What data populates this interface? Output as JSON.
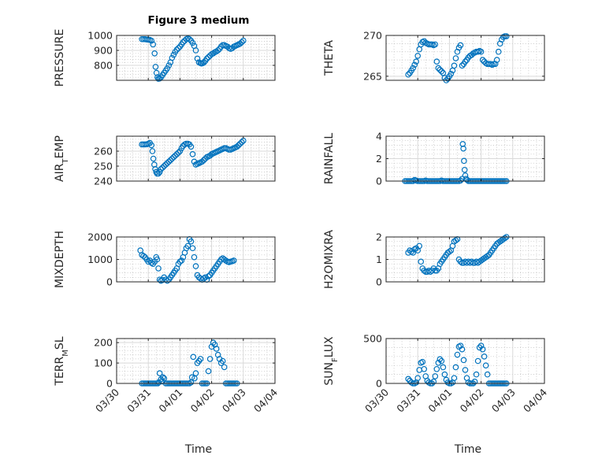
{
  "title": "Figure 3 medium",
  "colors": {
    "marker": "#0072BD",
    "axis": "#262626"
  },
  "x_axis": {
    "label": "Time",
    "range": [
      "03/30",
      "04/04"
    ],
    "ticks": [
      "03/30",
      "03/31",
      "04/01",
      "04/02",
      "04/03",
      "04/04"
    ]
  },
  "chart_data": [
    {
      "type": "scatter",
      "id": "pressure",
      "ylabel": "PRESSURE",
      "ylim": [
        700,
        1000
      ],
      "yticks": [
        800,
        900,
        1000
      ],
      "grid": true,
      "x": [
        0.8,
        0.85,
        0.9,
        0.95,
        1.0,
        1.05,
        1.1,
        1.15,
        1.2,
        1.23,
        1.26,
        1.29,
        1.32,
        1.36,
        1.4,
        1.45,
        1.5,
        1.55,
        1.6,
        1.65,
        1.7,
        1.75,
        1.8,
        1.85,
        1.9,
        1.95,
        2.0,
        2.05,
        2.1,
        2.15,
        2.2,
        2.25,
        2.3,
        2.35,
        2.4,
        2.45,
        2.5,
        2.55,
        2.6,
        2.65,
        2.68,
        2.72,
        2.76,
        2.8,
        2.85,
        2.9,
        2.95,
        3.0,
        3.05,
        3.1,
        3.15,
        3.2,
        3.25,
        3.3,
        3.35,
        3.4,
        3.45,
        3.5,
        3.55,
        3.6,
        3.65,
        3.7,
        3.75,
        3.8,
        3.85,
        3.9,
        3.95,
        4.0
      ],
      "y": [
        975,
        975,
        975,
        973,
        972,
        970,
        965,
        940,
        880,
        790,
        750,
        720,
        710,
        712,
        720,
        735,
        750,
        765,
        780,
        800,
        820,
        850,
        870,
        890,
        905,
        915,
        925,
        940,
        955,
        965,
        975,
        980,
        975,
        965,
        950,
        930,
        900,
        845,
        820,
        815,
        812,
        815,
        820,
        830,
        845,
        855,
        865,
        875,
        880,
        888,
        893,
        900,
        910,
        925,
        935,
        935,
        930,
        925,
        915,
        910,
        915,
        925,
        930,
        935,
        940,
        945,
        955,
        965
      ]
    },
    {
      "type": "scatter",
      "id": "theta",
      "ylabel": "THETA",
      "ylim": [
        264.5,
        270
      ],
      "yticks": [
        265,
        270
      ],
      "grid": true,
      "x": [
        0.7,
        0.75,
        0.8,
        0.85,
        0.9,
        0.95,
        1.0,
        1.05,
        1.1,
        1.15,
        1.2,
        1.25,
        1.3,
        1.35,
        1.4,
        1.45,
        1.5,
        1.55,
        1.6,
        1.65,
        1.7,
        1.75,
        1.8,
        1.85,
        1.9,
        1.95,
        2.0,
        2.05,
        2.1,
        2.15,
        2.2,
        2.25,
        2.3,
        2.35,
        2.4,
        2.45,
        2.5,
        2.55,
        2.6,
        2.65,
        2.7,
        2.75,
        2.8,
        2.85,
        2.9,
        2.95,
        3.0,
        3.05,
        3.1,
        3.15,
        3.2,
        3.25,
        3.3,
        3.35,
        3.4,
        3.45,
        3.5,
        3.55,
        3.6,
        3.65,
        3.7,
        3.75,
        3.8
      ],
      "y": [
        265.2,
        265.4,
        265.7,
        266.0,
        266.4,
        266.8,
        267.5,
        268.3,
        268.9,
        269.2,
        269.3,
        269.1,
        269.0,
        268.9,
        268.9,
        268.9,
        268.8,
        268.9,
        266.8,
        266.0,
        265.8,
        265.6,
        265.4,
        264.8,
        264.5,
        264.7,
        265.0,
        265.3,
        265.7,
        266.3,
        267.2,
        268.0,
        268.5,
        268.8,
        266.3,
        266.5,
        266.8,
        267.0,
        267.3,
        267.5,
        267.6,
        267.8,
        267.9,
        268.0,
        268.0,
        268.1,
        268.0,
        267.0,
        266.8,
        266.6,
        266.5,
        266.5,
        266.5,
        266.4,
        266.5,
        266.5,
        267.0,
        268.0,
        269.0,
        269.5,
        269.8,
        269.9,
        269.9
      ]
    },
    {
      "type": "scatter",
      "id": "air_temp",
      "ylabel": "AIR_TEMP",
      "ylim": [
        240,
        270
      ],
      "yticks": [
        240,
        250,
        260
      ],
      "grid": true,
      "x": [
        0.8,
        0.85,
        0.9,
        0.95,
        1.0,
        1.05,
        1.1,
        1.13,
        1.16,
        1.19,
        1.22,
        1.25,
        1.28,
        1.32,
        1.36,
        1.4,
        1.45,
        1.5,
        1.55,
        1.6,
        1.65,
        1.7,
        1.75,
        1.8,
        1.85,
        1.9,
        1.95,
        2.0,
        2.05,
        2.1,
        2.15,
        2.2,
        2.25,
        2.3,
        2.35,
        2.4,
        2.45,
        2.5,
        2.55,
        2.6,
        2.65,
        2.7,
        2.75,
        2.8,
        2.85,
        2.9,
        2.95,
        3.0,
        3.05,
        3.1,
        3.15,
        3.2,
        3.25,
        3.3,
        3.35,
        3.4,
        3.45,
        3.5,
        3.55,
        3.6,
        3.65,
        3.7,
        3.75,
        3.8,
        3.85,
        3.9,
        3.95,
        4.0
      ],
      "y": [
        264.5,
        264.5,
        264.5,
        264.6,
        265,
        265.5,
        264,
        260,
        255,
        251,
        248,
        246,
        245,
        245,
        246,
        248,
        249,
        250,
        251,
        252,
        253,
        254,
        255,
        256,
        257,
        258,
        259,
        260,
        262,
        263.5,
        264.5,
        265,
        265,
        264.5,
        263,
        258,
        253,
        251,
        251.5,
        252,
        252.5,
        253,
        254,
        255,
        256,
        256.5,
        257,
        258,
        258.5,
        259,
        259.5,
        260,
        260.5,
        261,
        261.5,
        262,
        262,
        261.5,
        261,
        261,
        261.5,
        262,
        262.5,
        263,
        264,
        265,
        266,
        267
      ]
    },
    {
      "type": "scatter",
      "id": "rainfall",
      "ylabel": "RAINFALL",
      "ylim": [
        0,
        4
      ],
      "yticks": [
        0,
        2,
        4
      ],
      "grid": true,
      "x": [
        0.6,
        0.65,
        0.7,
        0.75,
        0.8,
        0.85,
        0.9,
        0.95,
        1.0,
        1.05,
        1.1,
        1.15,
        1.2,
        1.25,
        1.3,
        1.35,
        1.4,
        1.45,
        1.5,
        1.55,
        1.6,
        1.65,
        1.7,
        1.75,
        1.8,
        1.85,
        1.9,
        1.95,
        2.0,
        2.05,
        2.1,
        2.15,
        2.2,
        2.25,
        2.3,
        2.35,
        2.4,
        2.42,
        2.44,
        2.46,
        2.48,
        2.5,
        2.53,
        2.56,
        2.6,
        2.65,
        2.7,
        2.75,
        2.8,
        2.85,
        2.9,
        2.95,
        3.0,
        3.05,
        3.1,
        3.15,
        3.2,
        3.25,
        3.3,
        3.35,
        3.4,
        3.45,
        3.5,
        3.55,
        3.6,
        3.65,
        3.7,
        3.75,
        3.8
      ],
      "y": [
        0,
        0,
        0,
        0,
        0,
        0,
        0.1,
        0.05,
        0,
        0,
        0,
        0,
        0,
        0.05,
        0,
        0,
        0,
        0,
        0,
        0,
        0,
        0,
        0,
        0.05,
        0,
        0,
        0,
        0,
        0,
        0,
        0,
        0,
        0,
        0,
        0,
        0.05,
        0.2,
        3.3,
        2.9,
        1.8,
        1.0,
        0.5,
        0.2,
        0.1,
        0,
        0,
        0,
        0,
        0,
        0,
        0,
        0,
        0,
        0,
        0,
        0,
        0,
        0,
        0,
        0,
        0,
        0,
        0,
        0,
        0,
        0,
        0,
        0,
        0
      ]
    },
    {
      "type": "scatter",
      "id": "mixdepth",
      "ylabel": "MIXDEPTH",
      "ylim": [
        0,
        2000
      ],
      "yticks": [
        0,
        1000,
        2000
      ],
      "grid": true,
      "x": [
        0.75,
        0.8,
        0.85,
        0.9,
        0.95,
        1.0,
        1.05,
        1.1,
        1.15,
        1.2,
        1.25,
        1.28,
        1.32,
        1.36,
        1.4,
        1.45,
        1.5,
        1.55,
        1.6,
        1.65,
        1.7,
        1.75,
        1.8,
        1.85,
        1.9,
        1.95,
        2.0,
        2.05,
        2.1,
        2.15,
        2.2,
        2.25,
        2.3,
        2.35,
        2.4,
        2.45,
        2.5,
        2.55,
        2.6,
        2.65,
        2.7,
        2.75,
        2.8,
        2.85,
        2.9,
        2.95,
        3.0,
        3.05,
        3.1,
        3.15,
        3.2,
        3.25,
        3.3,
        3.35,
        3.4,
        3.45,
        3.5,
        3.55,
        3.6,
        3.65,
        3.7
      ],
      "y": [
        1400,
        1200,
        1150,
        1100,
        1000,
        900,
        950,
        850,
        800,
        900,
        1100,
        1000,
        600,
        100,
        50,
        80,
        200,
        100,
        50,
        100,
        200,
        300,
        400,
        500,
        600,
        800,
        900,
        950,
        1100,
        1300,
        1500,
        1600,
        1900,
        1800,
        1500,
        1100,
        700,
        300,
        200,
        150,
        100,
        150,
        200,
        100,
        250,
        300,
        400,
        500,
        600,
        700,
        800,
        900,
        1000,
        1050,
        1000,
        950,
        900,
        880,
        900,
        920,
        950
      ]
    },
    {
      "type": "scatter",
      "id": "h2omixra",
      "ylabel": "H2OMIXRA",
      "ylim": [
        0,
        2
      ],
      "yticks": [
        0,
        1,
        2
      ],
      "grid": true,
      "x": [
        0.7,
        0.75,
        0.8,
        0.85,
        0.9,
        0.95,
        1.0,
        1.05,
        1.1,
        1.15,
        1.2,
        1.25,
        1.3,
        1.35,
        1.4,
        1.45,
        1.5,
        1.55,
        1.6,
        1.65,
        1.7,
        1.75,
        1.8,
        1.85,
        1.9,
        1.95,
        2.0,
        2.05,
        2.1,
        2.15,
        2.2,
        2.25,
        2.3,
        2.35,
        2.4,
        2.45,
        2.5,
        2.55,
        2.6,
        2.65,
        2.7,
        2.75,
        2.8,
        2.85,
        2.9,
        2.95,
        3.0,
        3.05,
        3.1,
        3.15,
        3.2,
        3.25,
        3.3,
        3.35,
        3.4,
        3.45,
        3.5,
        3.55,
        3.6,
        3.65,
        3.7,
        3.75,
        3.8
      ],
      "y": [
        1.3,
        1.4,
        1.35,
        1.3,
        1.45,
        1.5,
        1.4,
        1.6,
        0.9,
        0.6,
        0.5,
        0.45,
        0.45,
        0.5,
        0.45,
        0.5,
        0.6,
        0.5,
        0.5,
        0.6,
        0.8,
        0.9,
        1.0,
        1.1,
        1.2,
        1.3,
        1.35,
        1.4,
        1.6,
        1.8,
        1.85,
        1.9,
        1.0,
        0.9,
        0.85,
        0.85,
        0.9,
        0.85,
        0.9,
        0.85,
        0.9,
        0.85,
        0.85,
        0.9,
        0.85,
        0.9,
        0.95,
        1.0,
        1.05,
        1.1,
        1.15,
        1.2,
        1.3,
        1.4,
        1.5,
        1.6,
        1.7,
        1.75,
        1.8,
        1.85,
        1.9,
        1.95,
        2.0
      ]
    },
    {
      "type": "scatter",
      "id": "terr_msl",
      "ylabel": "TERR_MSL",
      "ylim": [
        0,
        220
      ],
      "yticks": [
        0,
        100,
        200
      ],
      "grid": true,
      "x": [
        0.8,
        0.85,
        0.9,
        0.95,
        1.0,
        1.05,
        1.1,
        1.15,
        1.2,
        1.25,
        1.3,
        1.33,
        1.36,
        1.4,
        1.43,
        1.46,
        1.5,
        1.55,
        1.6,
        1.65,
        1.7,
        1.75,
        1.8,
        1.85,
        1.9,
        1.95,
        2.0,
        2.05,
        2.1,
        2.15,
        2.2,
        2.25,
        2.3,
        2.35,
        2.38,
        2.42,
        2.46,
        2.5,
        2.55,
        2.6,
        2.65,
        2.7,
        2.75,
        2.8,
        2.85,
        2.9,
        2.95,
        3.0,
        3.05,
        3.1,
        3.15,
        3.2,
        3.25,
        3.3,
        3.35,
        3.4,
        3.45,
        3.5,
        3.55,
        3.6,
        3.65,
        3.7,
        3.75,
        3.8
      ],
      "y": [
        0,
        0,
        0,
        0,
        0,
        0,
        0,
        0,
        0,
        0,
        0,
        5,
        50,
        20,
        10,
        30,
        25,
        0,
        0,
        0,
        0,
        0,
        0,
        0,
        0,
        0,
        0,
        0,
        0,
        0,
        0,
        0,
        0,
        5,
        30,
        130,
        25,
        50,
        100,
        110,
        120,
        0,
        0,
        0,
        0,
        60,
        120,
        180,
        200,
        190,
        170,
        140,
        120,
        100,
        110,
        80,
        0,
        0,
        0,
        0,
        0,
        0,
        0,
        0
      ]
    },
    {
      "type": "scatter",
      "id": "sun_flux",
      "ylabel": "SUN_FLUX",
      "ylim": [
        0,
        500
      ],
      "yticks": [
        0,
        500
      ],
      "grid": true,
      "x": [
        0.7,
        0.75,
        0.8,
        0.85,
        0.9,
        0.95,
        1.0,
        1.05,
        1.1,
        1.15,
        1.2,
        1.25,
        1.3,
        1.35,
        1.4,
        1.45,
        1.5,
        1.55,
        1.6,
        1.65,
        1.7,
        1.75,
        1.8,
        1.85,
        1.9,
        1.95,
        2.0,
        2.05,
        2.1,
        2.15,
        2.2,
        2.25,
        2.3,
        2.35,
        2.4,
        2.45,
        2.5,
        2.55,
        2.6,
        2.65,
        2.7,
        2.75,
        2.8,
        2.85,
        2.9,
        2.95,
        3.0,
        3.05,
        3.1,
        3.15,
        3.2,
        3.25,
        3.3,
        3.35,
        3.4,
        3.45,
        3.5,
        3.55,
        3.6,
        3.65,
        3.7,
        3.75,
        3.8
      ],
      "y": [
        50,
        30,
        10,
        0,
        0,
        10,
        60,
        150,
        230,
        240,
        160,
        80,
        30,
        10,
        0,
        0,
        20,
        80,
        160,
        230,
        270,
        250,
        180,
        100,
        40,
        10,
        0,
        0,
        10,
        60,
        180,
        320,
        410,
        420,
        380,
        260,
        150,
        60,
        10,
        0,
        0,
        0,
        20,
        100,
        250,
        400,
        420,
        380,
        300,
        200,
        100,
        0,
        0,
        0,
        0,
        0,
        0,
        0,
        0,
        0,
        0,
        0,
        0
      ]
    }
  ]
}
